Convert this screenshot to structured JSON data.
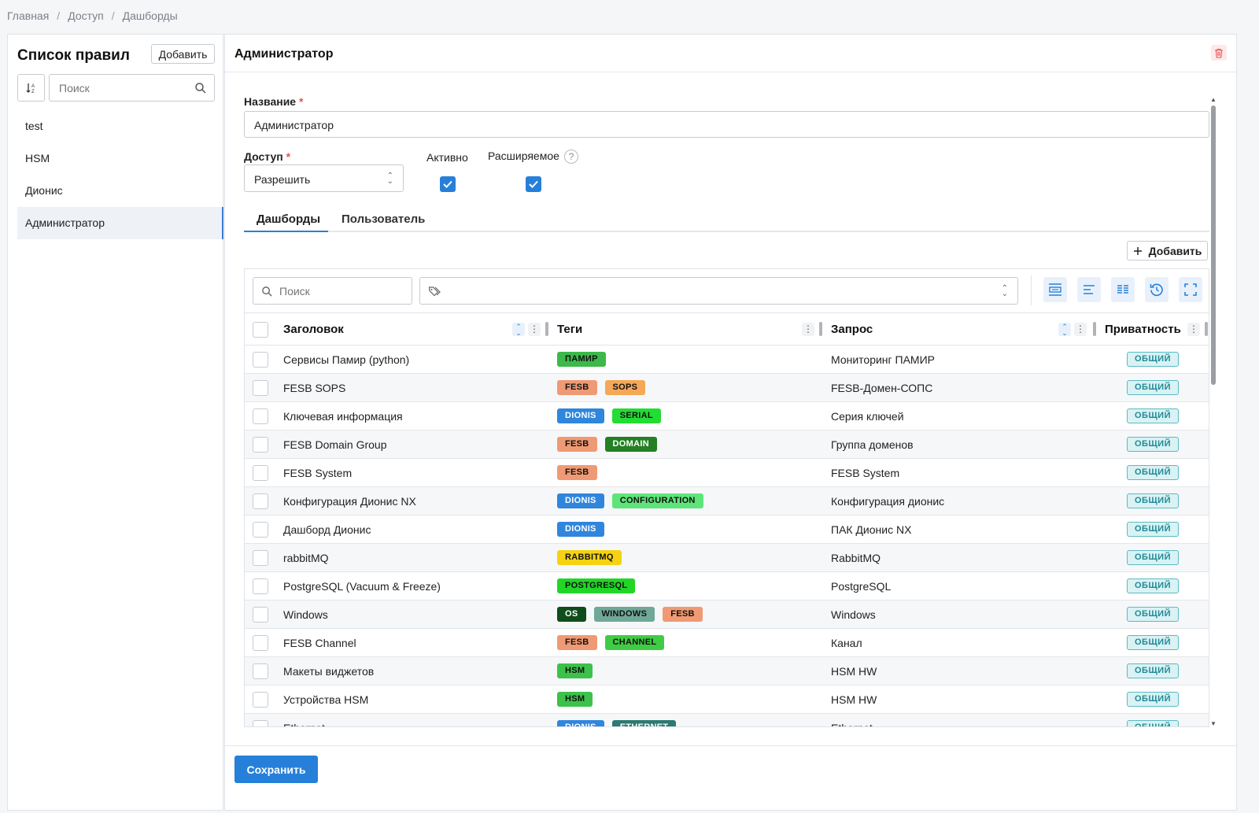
{
  "breadcrumb": [
    "Главная",
    "Доступ",
    "Дашборды"
  ],
  "breadcrumb_sep": "/",
  "left_panel": {
    "title": "Список правил",
    "add_label": "Добавить",
    "search_placeholder": "Поиск",
    "rules": [
      "test",
      "HSM",
      "Дионис",
      "Администратор"
    ],
    "active_rule": "Администратор"
  },
  "editor": {
    "title": "Администратор",
    "name_label": "Название",
    "name_value": "Администратор",
    "access_label": "Доступ",
    "access_value": "Разрешить",
    "active_label": "Активно",
    "active_checked": true,
    "extensible_label": "Расширяемое",
    "extensible_checked": true,
    "required_mark": "*",
    "help_glyph": "?",
    "tabs": [
      "Дашборды",
      "Пользователь"
    ],
    "active_tab": "Дашборды",
    "add_label": "Добавить",
    "save_label": "Сохранить"
  },
  "table": {
    "search_placeholder": "Поиск",
    "columns": [
      "Заголовок",
      "Теги",
      "Запрос",
      "Приватность"
    ],
    "rows": [
      {
        "title": "Сервисы Памир (python)",
        "tags": [
          {
            "t": "ПАМИР",
            "c": "#3cb94a",
            "f": "#111"
          }
        ],
        "query": "Мониторинг ПАМИР",
        "privacy": "ОБЩИЙ"
      },
      {
        "title": "FESB SOPS",
        "tags": [
          {
            "t": "FESB",
            "c": "#ef9a74",
            "f": "#111"
          },
          {
            "t": "SOPS",
            "c": "#f5a857",
            "f": "#111"
          }
        ],
        "query": "FESB-Домен-СОПС",
        "privacy": "ОБЩИЙ"
      },
      {
        "title": "Ключевая информация",
        "tags": [
          {
            "t": "DIONIS",
            "c": "#2f86dc",
            "f": "#fff"
          },
          {
            "t": "SERIAL",
            "c": "#22dd33",
            "f": "#111"
          }
        ],
        "query": "Серия ключей",
        "privacy": "ОБЩИЙ"
      },
      {
        "title": "FESB Domain Group",
        "tags": [
          {
            "t": "FESB",
            "c": "#ef9a74",
            "f": "#111"
          },
          {
            "t": "DOMAIN",
            "c": "#238023",
            "f": "#fff"
          }
        ],
        "query": "Группа доменов",
        "privacy": "ОБЩИЙ"
      },
      {
        "title": "FESB System",
        "tags": [
          {
            "t": "FESB",
            "c": "#ef9a74",
            "f": "#111"
          }
        ],
        "query": "FESB System",
        "privacy": "ОБЩИЙ"
      },
      {
        "title": "Конфигурация Дионис NX",
        "tags": [
          {
            "t": "DIONIS",
            "c": "#2f86dc",
            "f": "#fff"
          },
          {
            "t": "CONFIGURATION",
            "c": "#5ee57a",
            "f": "#111"
          }
        ],
        "query": "Конфигурация дионис",
        "privacy": "ОБЩИЙ"
      },
      {
        "title": "Дашборд Дионис",
        "tags": [
          {
            "t": "DIONIS",
            "c": "#2f86dc",
            "f": "#fff"
          }
        ],
        "query": "ПАК Дионис NX",
        "privacy": "ОБЩИЙ"
      },
      {
        "title": "rabbitMQ",
        "tags": [
          {
            "t": "RABBITMQ",
            "c": "#f5d312",
            "f": "#111"
          }
        ],
        "query": "RabbitMQ",
        "privacy": "ОБЩИЙ"
      },
      {
        "title": "PostgreSQL (Vacuum & Freeze)",
        "tags": [
          {
            "t": "POSTGRESQL",
            "c": "#22d626",
            "f": "#111"
          }
        ],
        "query": "PostgreSQL",
        "privacy": "ОБЩИЙ"
      },
      {
        "title": "Windows",
        "tags": [
          {
            "t": "OS",
            "c": "#0f4d1a",
            "f": "#fff"
          },
          {
            "t": "WINDOWS",
            "c": "#6fa896",
            "f": "#111"
          },
          {
            "t": "FESB",
            "c": "#ef9a74",
            "f": "#111"
          }
        ],
        "query": "Windows",
        "privacy": "ОБЩИЙ"
      },
      {
        "title": "FESB Channel",
        "tags": [
          {
            "t": "FESB",
            "c": "#ef9a74",
            "f": "#111"
          },
          {
            "t": "CHANNEL",
            "c": "#3fcc44",
            "f": "#111"
          }
        ],
        "query": "Канал",
        "privacy": "ОБЩИЙ"
      },
      {
        "title": "Макеты виджетов",
        "tags": [
          {
            "t": "HSM",
            "c": "#3cc24a",
            "f": "#111"
          }
        ],
        "query": "HSM HW",
        "privacy": "ОБЩИЙ"
      },
      {
        "title": "Устройства HSM",
        "tags": [
          {
            "t": "HSM",
            "c": "#3cc24a",
            "f": "#111"
          }
        ],
        "query": "HSM HW",
        "privacy": "ОБЩИЙ"
      },
      {
        "title": "Ethernet",
        "tags": [
          {
            "t": "DIONIS",
            "c": "#2f86dc",
            "f": "#fff"
          },
          {
            "t": "ETHERNET",
            "c": "#2c7a72",
            "f": "#fff"
          }
        ],
        "query": "Ethernet",
        "privacy": "ОБЩИЙ"
      }
    ]
  },
  "colors": {
    "accent": "#2680d9",
    "privacy_bg": "#d9f2f4",
    "privacy_border": "#5bbac4",
    "delete": "#e55353"
  }
}
